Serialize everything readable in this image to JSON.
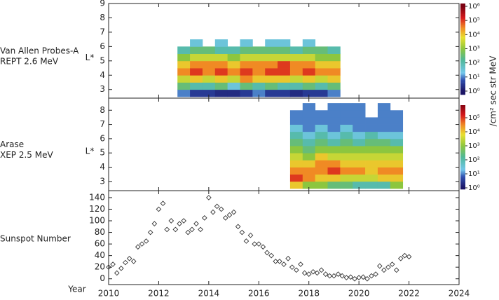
{
  "chart_data": [
    {
      "type": "heatmap",
      "label": [
        "Van Allen Probes-A",
        "REPT 2.6 MeV"
      ],
      "ylabel": "L*",
      "colorbar_label": "/cm² sec str MeV",
      "xlim": [
        2010,
        2024
      ],
      "ylim": [
        2.4,
        9
      ],
      "yticks": [
        3,
        4,
        5,
        6,
        7,
        8,
        9
      ],
      "x_edges": [
        2012.75,
        2013.25,
        2013.75,
        2014.25,
        2014.75,
        2015.25,
        2015.75,
        2016.25,
        2016.75,
        2017.25,
        2017.75,
        2018.25,
        2018.75,
        2019.25
      ],
      "y_edges": [
        2.5,
        3,
        3.5,
        4,
        4.5,
        5,
        5.5,
        6,
        6.5
      ],
      "z": [
        [
          1,
          2.5,
          3.5,
          4.5,
          4,
          3,
          2,
          null
        ],
        [
          0.5,
          2,
          4,
          5,
          4.5,
          3.5,
          2.5,
          1.5
        ],
        [
          0.5,
          2,
          3.5,
          4.5,
          4.5,
          3.5,
          2.5,
          null
        ],
        [
          0.3,
          2.5,
          4,
          5,
          4.5,
          3.5,
          2,
          1.5
        ],
        [
          0.3,
          1.5,
          3.5,
          4.5,
          4,
          3,
          2,
          null
        ],
        [
          0.5,
          2.5,
          4.5,
          5,
          4.5,
          3.5,
          2.5,
          1.5
        ],
        [
          1,
          2,
          4,
          4.5,
          4.5,
          3.5,
          2.5,
          null
        ],
        [
          0.5,
          2.5,
          4,
          5,
          4.5,
          3.5,
          2.5,
          1.5
        ],
        [
          0.5,
          2,
          4,
          5,
          5,
          3.5,
          2.5,
          1.5
        ],
        [
          0.3,
          2,
          3.5,
          4.5,
          4.5,
          3.5,
          2,
          null
        ],
        [
          0.5,
          2.5,
          4,
          5,
          4.5,
          3.5,
          2.5,
          1.5
        ],
        [
          0.5,
          2,
          3.5,
          4.5,
          4,
          3,
          2.5,
          null
        ],
        [
          1,
          2.5,
          4,
          4.5,
          4,
          3,
          2,
          null
        ]
      ],
      "clim": [
        -0.25,
        6.2
      ],
      "cticks": [
        {
          "value": 0,
          "label": "10⁰"
        },
        {
          "value": 1,
          "label": "10¹"
        },
        {
          "value": 2,
          "label": "10²"
        },
        {
          "value": 3,
          "label": "10³"
        },
        {
          "value": 4,
          "label": "10⁴"
        },
        {
          "value": 5,
          "label": "10⁵"
        },
        {
          "value": 6,
          "label": "10⁶"
        }
      ],
      "colormap": [
        [
          0,
          "#1b1464"
        ],
        [
          0.8,
          "#3050b0"
        ],
        [
          1.3,
          "#74c7ec"
        ],
        [
          2.2,
          "#4fb89a"
        ],
        [
          3,
          "#8cc63f"
        ],
        [
          3.8,
          "#e8e030"
        ],
        [
          4.5,
          "#f08a24"
        ],
        [
          5.2,
          "#d7191c"
        ],
        [
          6,
          "#7a0010"
        ]
      ]
    },
    {
      "type": "heatmap",
      "label": [
        "Arase",
        "XEP 2.5 MeV"
      ],
      "ylabel": "L*",
      "xlim": [
        2010,
        2024
      ],
      "ylim": [
        2.35,
        8.85
      ],
      "yticks": [
        3,
        4,
        5,
        6,
        7,
        8
      ],
      "x_edges": [
        2017.25,
        2017.75,
        2018.25,
        2018.75,
        2019.25,
        2019.75,
        2020.25,
        2020.75,
        2021.25,
        2021.75
      ],
      "y_edges": [
        2.5,
        3,
        3.5,
        4,
        4.5,
        5,
        5.5,
        6,
        6.5,
        7,
        7.5,
        8,
        8.5
      ],
      "z": [
        [
          4,
          5,
          4.5,
          4,
          3.5,
          3,
          2.5,
          2,
          1.5,
          1,
          1,
          null
        ],
        [
          3,
          4.5,
          4.5,
          4,
          3,
          2.5,
          2,
          1.5,
          1,
          1,
          1,
          1
        ],
        [
          3,
          4,
          4.5,
          4.5,
          4,
          3,
          2.5,
          2,
          1.5,
          1,
          1,
          null
        ],
        [
          2.5,
          4,
          5,
          4.5,
          3.5,
          3,
          2,
          1.5,
          1,
          1,
          1,
          1
        ],
        [
          2.5,
          3.5,
          4.5,
          4,
          3.5,
          3,
          2.5,
          2,
          1.5,
          1,
          1,
          1
        ],
        [
          2,
          3.5,
          4.5,
          4,
          3.5,
          3,
          2,
          1.5,
          1,
          1,
          1,
          1
        ],
        [
          2,
          3.5,
          4,
          4,
          3.5,
          3,
          2.5,
          2,
          1,
          1,
          null,
          null
        ],
        [
          2,
          4,
          4.5,
          4,
          3.5,
          3,
          2.5,
          1.5,
          1,
          1,
          1,
          1
        ],
        [
          3,
          4,
          4.5,
          4,
          3.5,
          3,
          2,
          1.5,
          1,
          1,
          1,
          null
        ]
      ],
      "clim": [
        -0.1,
        5.9
      ],
      "cticks": [
        {
          "value": 0,
          "label": "10⁰"
        },
        {
          "value": 1,
          "label": "10¹"
        },
        {
          "value": 2,
          "label": "10²"
        },
        {
          "value": 3,
          "label": "10³"
        },
        {
          "value": 4,
          "label": "10⁴"
        },
        {
          "value": 5,
          "label": "10⁵"
        }
      ],
      "colormap": [
        [
          0,
          "#1b1464"
        ],
        [
          0.8,
          "#3050b0"
        ],
        [
          1.3,
          "#74c7ec"
        ],
        [
          2.2,
          "#4fb89a"
        ],
        [
          3,
          "#8cc63f"
        ],
        [
          3.8,
          "#e8e030"
        ],
        [
          4.5,
          "#f08a24"
        ],
        [
          5.2,
          "#d7191c"
        ],
        [
          6,
          "#7a0010"
        ]
      ]
    },
    {
      "type": "scatter",
      "label": [
        "Sunspot Number"
      ],
      "xlabel": "Year",
      "marker": "diamond",
      "color": "#333333",
      "xlim": [
        2010,
        2024
      ],
      "xticks": [
        2010,
        2012,
        2014,
        2016,
        2018,
        2020,
        2022,
        2024
      ],
      "ylim": [
        -10,
        152
      ],
      "yticks": [
        0,
        20,
        40,
        60,
        80,
        100,
        120,
        140
      ],
      "x": [
        2010,
        2010.17,
        2010.33,
        2010.5,
        2010.67,
        2010.83,
        2011,
        2011.17,
        2011.33,
        2011.5,
        2011.67,
        2011.83,
        2012,
        2012.17,
        2012.33,
        2012.5,
        2012.67,
        2012.83,
        2013,
        2013.17,
        2013.33,
        2013.5,
        2013.67,
        2013.83,
        2014,
        2014.17,
        2014.33,
        2014.5,
        2014.67,
        2014.83,
        2015,
        2015.17,
        2015.33,
        2015.5,
        2015.67,
        2015.83,
        2016,
        2016.17,
        2016.33,
        2016.5,
        2016.67,
        2016.83,
        2017,
        2017.17,
        2017.33,
        2017.5,
        2017.67,
        2017.83,
        2018,
        2018.17,
        2018.33,
        2018.5,
        2018.67,
        2018.83,
        2019,
        2019.17,
        2019.33,
        2019.5,
        2019.67,
        2019.83,
        2020,
        2020.17,
        2020.33,
        2020.5,
        2020.67,
        2020.83,
        2021,
        2021.17,
        2021.33,
        2021.5,
        2021.67,
        2021.83,
        2022
      ],
      "values": [
        20,
        25,
        10,
        18,
        28,
        35,
        30,
        55,
        60,
        65,
        80,
        95,
        120,
        130,
        85,
        100,
        85,
        95,
        100,
        80,
        85,
        95,
        85,
        105,
        140,
        115,
        125,
        120,
        105,
        110,
        115,
        90,
        80,
        65,
        75,
        60,
        60,
        55,
        45,
        40,
        30,
        30,
        25,
        35,
        20,
        15,
        25,
        10,
        8,
        12,
        10,
        15,
        8,
        5,
        5,
        8,
        5,
        2,
        3,
        0,
        2,
        3,
        0,
        5,
        8,
        22,
        15,
        20,
        25,
        15,
        35,
        40,
        38
      ]
    }
  ]
}
